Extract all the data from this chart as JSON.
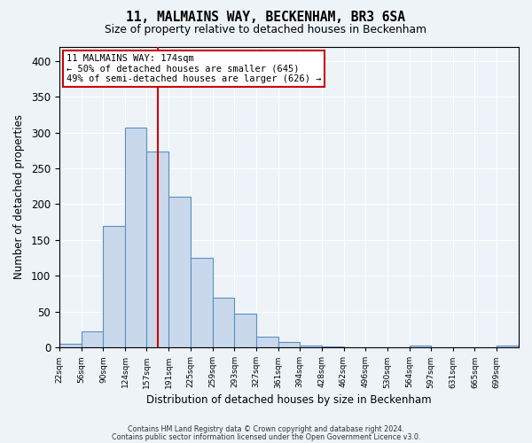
{
  "title": "11, MALMAINS WAY, BECKENHAM, BR3 6SA",
  "subtitle": "Size of property relative to detached houses in Beckenham",
  "xlabel": "Distribution of detached houses by size in Beckenham",
  "ylabel": "Number of detached properties",
  "bar_values": [
    5,
    22,
    170,
    307,
    273,
    210,
    125,
    70,
    47,
    15,
    8,
    3,
    1,
    0,
    0,
    0,
    3,
    0,
    0,
    0,
    3
  ],
  "bin_edges": [
    22,
    56,
    90,
    124,
    157,
    191,
    225,
    259,
    293,
    327,
    361,
    394,
    428,
    462,
    496,
    530,
    564,
    597,
    631,
    665,
    699,
    733
  ],
  "bar_color": "#c9d9eb",
  "bar_edge_color": "#5b8fc4",
  "property_line_x": 174,
  "property_line_color": "#cc0000",
  "annotation_text": "11 MALMAINS WAY: 174sqm\n← 50% of detached houses are smaller (645)\n49% of semi-detached houses are larger (626) →",
  "annotation_box_facecolor": "#ffffff",
  "annotation_box_edgecolor": "#cc0000",
  "ylim": [
    0,
    420
  ],
  "yticks": [
    0,
    50,
    100,
    150,
    200,
    250,
    300,
    350,
    400
  ],
  "tick_labels": [
    "22sqm",
    "56sqm",
    "90sqm",
    "124sqm",
    "157sqm",
    "191sqm",
    "225sqm",
    "259sqm",
    "293sqm",
    "327sqm",
    "361sqm",
    "394sqm",
    "428sqm",
    "462sqm",
    "496sqm",
    "530sqm",
    "564sqm",
    "597sqm",
    "631sqm",
    "665sqm",
    "699sqm"
  ],
  "footer_line1": "Contains HM Land Registry data © Crown copyright and database right 2024.",
  "footer_line2": "Contains public sector information licensed under the Open Government Licence v3.0.",
  "background_color": "#eef3f8",
  "grid_color": "#ffffff"
}
